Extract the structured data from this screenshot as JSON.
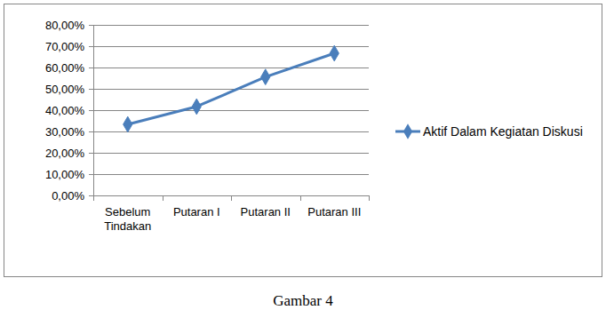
{
  "chart_data": {
    "type": "line",
    "title": "Gambar 4",
    "categories": [
      "Sebelum Tindakan",
      "Putaran I",
      "Putaran II",
      "Putaran III"
    ],
    "series": [
      {
        "name": "Aktif Dalam Kegiatan Diskusi",
        "color": "#4a7ebb",
        "marker": "diamond",
        "values": [
          33.33,
          41.67,
          55.56,
          66.67
        ]
      }
    ],
    "ylim": [
      0,
      80
    ],
    "yticks": [
      {
        "value": 0,
        "label": "0,00%"
      },
      {
        "value": 10,
        "label": "10,00%"
      },
      {
        "value": 20,
        "label": "20,00%"
      },
      {
        "value": 30,
        "label": "30,00%"
      },
      {
        "value": 40,
        "label": "40,00%"
      },
      {
        "value": 50,
        "label": "50,00%"
      },
      {
        "value": 60,
        "label": "60,00%"
      },
      {
        "value": 70,
        "label": "70,00%"
      },
      {
        "value": 80,
        "label": "80,00%"
      }
    ],
    "grid": true,
    "legend": "right"
  }
}
